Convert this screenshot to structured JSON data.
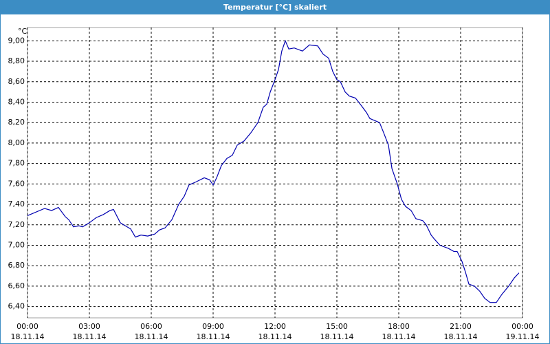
{
  "chart_data": {
    "type": "line",
    "title": "Temperatur [°C] skaliert",
    "y_unit": "°C",
    "xlim": [
      0,
      24
    ],
    "ylim": [
      6.29,
      9.13
    ],
    "xticks": [
      {
        "value": 0,
        "label": "00:00"
      },
      {
        "value": 3,
        "label": "03:00"
      },
      {
        "value": 6,
        "label": "06:00"
      },
      {
        "value": 9,
        "label": "09:00"
      },
      {
        "value": 12,
        "label": "12:00"
      },
      {
        "value": 15,
        "label": "15:00"
      },
      {
        "value": 18,
        "label": "18:00"
      },
      {
        "value": 21,
        "label": "21:00"
      },
      {
        "value": 24,
        "label": "00:00"
      }
    ],
    "xtick_dates": [
      "18.11.14",
      "18.11.14",
      "18.11.14",
      "18.11.14",
      "18.11.14",
      "18.11.14",
      "18.11.14",
      "18.11.14",
      "19.11.14"
    ],
    "yticks": [
      {
        "value": 6.4,
        "label": "6,40"
      },
      {
        "value": 6.6,
        "label": "6,60"
      },
      {
        "value": 6.8,
        "label": "6,80"
      },
      {
        "value": 7.0,
        "label": "7,00"
      },
      {
        "value": 7.2,
        "label": "7,20"
      },
      {
        "value": 7.4,
        "label": "7,40"
      },
      {
        "value": 7.6,
        "label": "7,60"
      },
      {
        "value": 7.8,
        "label": "7,80"
      },
      {
        "value": 8.0,
        "label": "8,00"
      },
      {
        "value": 8.2,
        "label": "8,20"
      },
      {
        "value": 8.4,
        "label": "8,40"
      },
      {
        "value": 8.6,
        "label": "8,60"
      },
      {
        "value": 8.8,
        "label": "8,80"
      },
      {
        "value": 9.0,
        "label": "9,00"
      }
    ],
    "grid": true,
    "color": "#0000b0",
    "x": [
      0,
      0.83,
      1.17,
      1.5,
      1.83,
      2,
      2.23,
      2.5,
      2.67,
      3,
      3.33,
      3.67,
      4,
      4.17,
      4.5,
      4.83,
      5,
      5.23,
      5.5,
      5.83,
      6.17,
      6.4,
      6.67,
      7,
      7.33,
      7.6,
      7.83,
      8.17,
      8.57,
      8.83,
      9,
      9.17,
      9.4,
      9.67,
      9.93,
      10.17,
      10.5,
      10.83,
      11.17,
      11.43,
      11.6,
      11.77,
      12,
      12.17,
      12.33,
      12.5,
      12.67,
      12.93,
      13.33,
      13.67,
      14.07,
      14.33,
      14.6,
      14.8,
      15,
      15.17,
      15.4,
      15.6,
      15.9,
      16.17,
      16.43,
      16.6,
      16.83,
      17.07,
      17.27,
      17.5,
      17.67,
      17.93,
      18.13,
      18.33,
      18.6,
      18.83,
      19.17,
      19.33,
      19.57,
      19.73,
      20,
      20.4,
      20.67,
      20.83,
      21.07,
      21.23,
      21.4,
      21.67,
      21.93,
      22.17,
      22.43,
      22.73,
      23,
      23.33,
      23.6,
      23.83
    ],
    "values": [
      7.29,
      7.36,
      7.34,
      7.37,
      7.28,
      7.25,
      7.18,
      7.19,
      7.18,
      7.22,
      7.27,
      7.3,
      7.34,
      7.35,
      7.22,
      7.18,
      7.16,
      7.08,
      7.1,
      7.09,
      7.11,
      7.15,
      7.17,
      7.25,
      7.4,
      7.48,
      7.59,
      7.62,
      7.66,
      7.64,
      7.59,
      7.66,
      7.78,
      7.85,
      7.88,
      7.98,
      8.02,
      8.1,
      8.2,
      8.35,
      8.38,
      8.5,
      8.62,
      8.72,
      8.9,
      9.0,
      8.92,
      8.93,
      8.9,
      8.96,
      8.95,
      8.87,
      8.83,
      8.7,
      8.62,
      8.6,
      8.5,
      8.46,
      8.44,
      8.37,
      8.3,
      8.24,
      8.22,
      8.2,
      8.1,
      7.98,
      7.75,
      7.6,
      7.45,
      7.38,
      7.34,
      7.26,
      7.24,
      7.2,
      7.1,
      7.06,
      7.0,
      6.97,
      6.94,
      6.94,
      6.84,
      6.74,
      6.62,
      6.6,
      6.55,
      6.48,
      6.44,
      6.44,
      6.52,
      6.6,
      6.68,
      6.73
    ]
  }
}
